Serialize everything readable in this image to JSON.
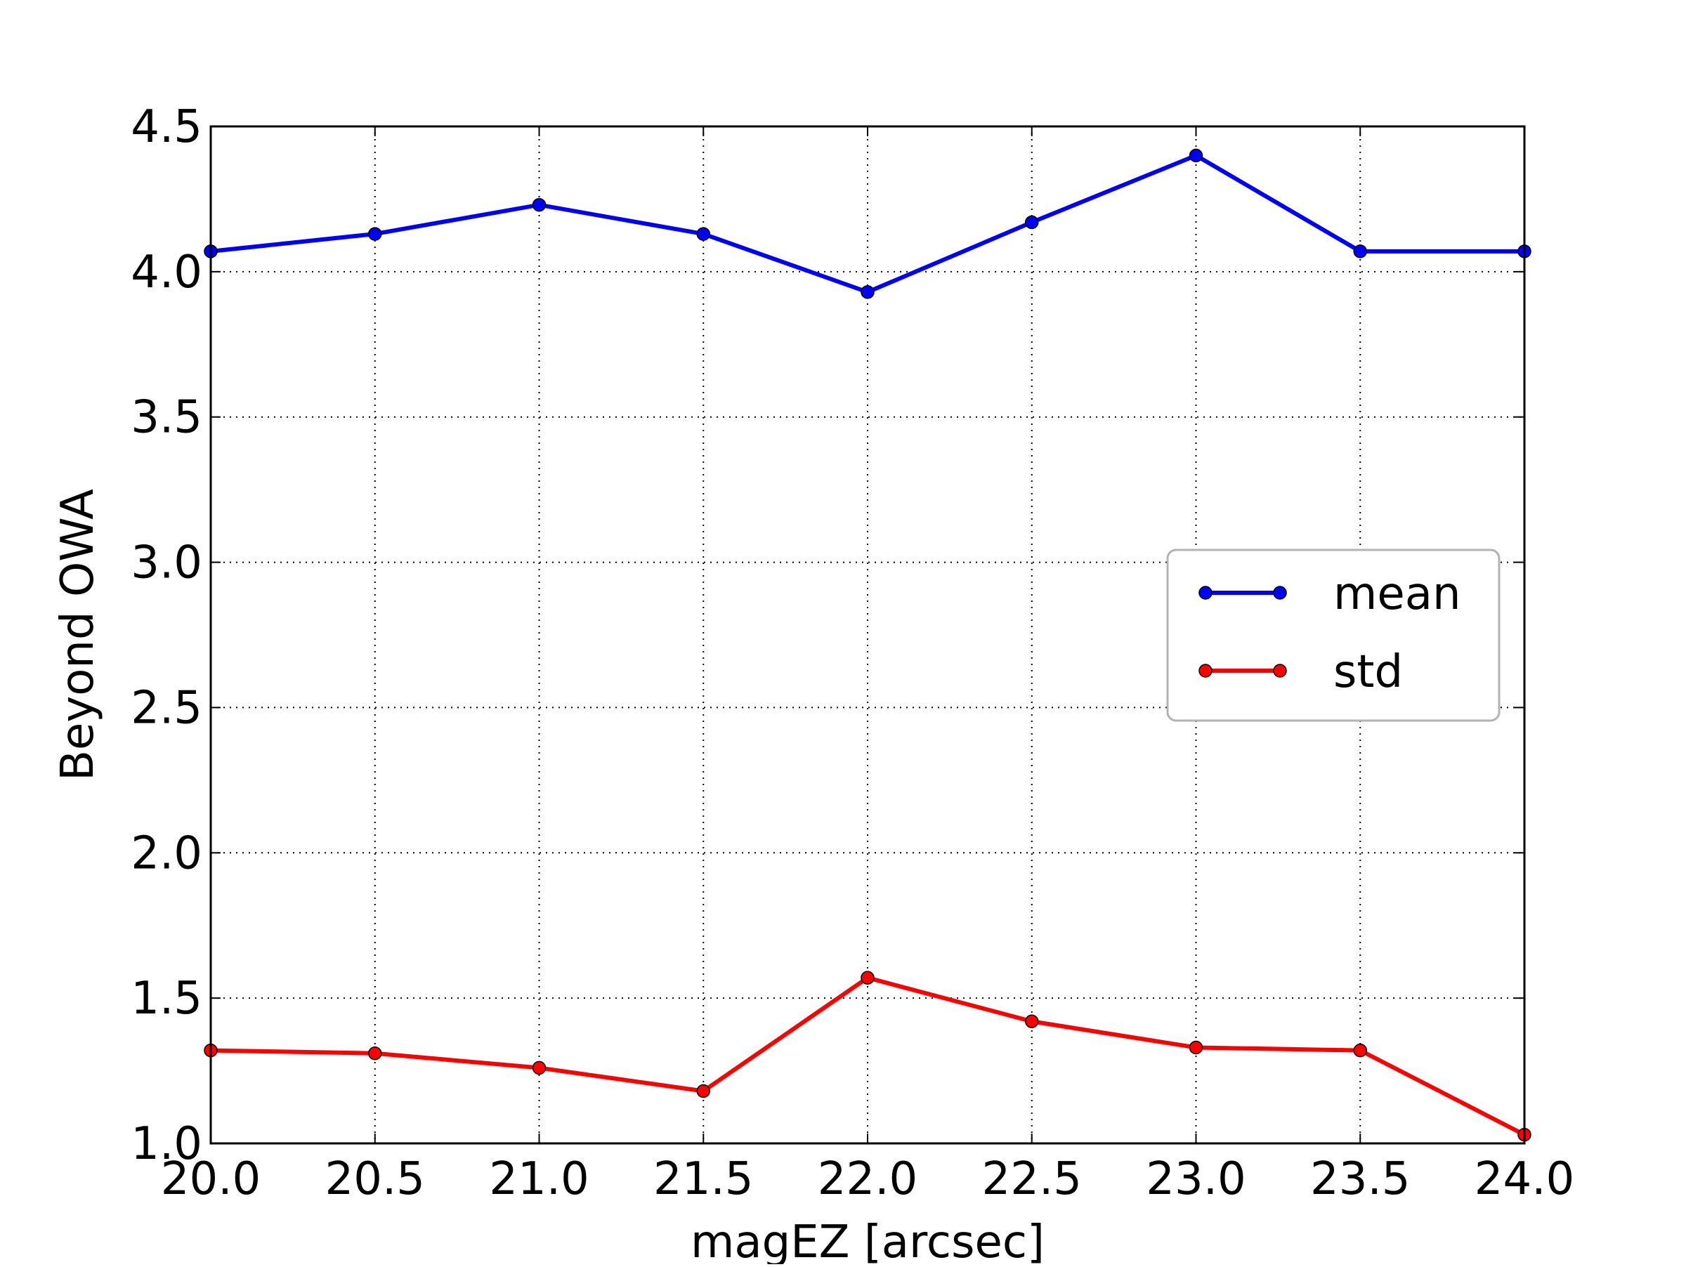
{
  "chart_data": {
    "type": "line",
    "title": "",
    "xlabel": "magEZ [arcsec]",
    "ylabel": "Beyond OWA",
    "x": [
      20.0,
      20.5,
      21.0,
      21.5,
      22.0,
      22.5,
      23.0,
      23.5,
      24.0
    ],
    "xlim": [
      20.0,
      24.0
    ],
    "ylim": [
      1.0,
      4.5
    ],
    "x_ticks": [
      "20.0",
      "20.5",
      "21.0",
      "21.5",
      "22.0",
      "22.5",
      "23.0",
      "23.5",
      "24.0"
    ],
    "y_ticks": [
      "1.0",
      "1.5",
      "2.0",
      "2.5",
      "3.0",
      "3.5",
      "4.0",
      "4.5"
    ],
    "grid": true,
    "legend_position": "center-right",
    "series": [
      {
        "name": "mean",
        "color": "#0000ff",
        "marker": "circle",
        "values": [
          4.07,
          4.13,
          4.23,
          4.13,
          3.93,
          4.17,
          4.4,
          4.07,
          4.07
        ]
      },
      {
        "name": "std",
        "color": "#ff0000",
        "marker": "circle",
        "values": [
          1.32,
          1.31,
          1.26,
          1.18,
          1.57,
          1.42,
          1.33,
          1.32,
          1.03
        ]
      }
    ]
  }
}
